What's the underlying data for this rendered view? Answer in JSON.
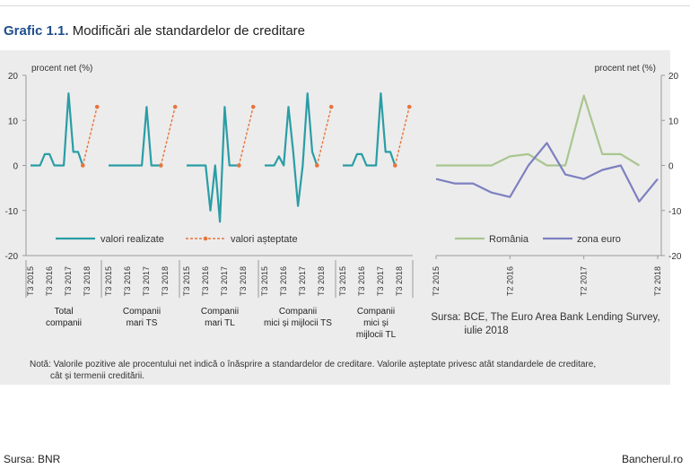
{
  "header": {
    "title_number": "Grafic 1.1.",
    "title_text": "Modificări ale standardelor de creditare"
  },
  "footer": {
    "source_left": "Sursa: BNR",
    "source_right": "Bancherul.ro"
  },
  "note": {
    "line1": "Notă: Valorile pozitive ale procentului net indică o înăsprire a standardelor de creditare. Valorile așteptate privesc atât standardele de creditare,",
    "line2": "cât și termenii creditării."
  },
  "colors": {
    "realized": "#2a9da5",
    "expected": "#e8743b",
    "romania": "#a9c690",
    "euro": "#7d80c0",
    "panel": "#ececec"
  },
  "chart_data": [
    {
      "type": "line",
      "ylabel": "procent net (%)",
      "ylim": [
        -20,
        20
      ],
      "yticks": [
        20,
        10,
        0,
        -10,
        -20
      ],
      "grid": false,
      "legend_position": "bottom",
      "tick_labels": [
        "T3 2015",
        "T3 2016",
        "T3 2017",
        "T3 2018"
      ],
      "groups": [
        {
          "label_lines": [
            "Total",
            "companii"
          ],
          "realized": [
            0,
            0,
            0,
            2.5,
            2.5,
            0,
            0,
            0,
            16,
            3,
            3,
            0
          ],
          "expected": {
            "from": [
              0,
              0
            ],
            "to": [
              3,
              13
            ]
          }
        },
        {
          "label_lines": [
            "Companii",
            "mari TS"
          ],
          "realized": [
            0,
            0,
            0,
            0,
            0,
            0,
            0,
            0,
            13,
            0,
            0,
            0
          ],
          "expected": {
            "from": [
              0,
              0
            ],
            "to": [
              3,
              13
            ]
          }
        },
        {
          "label_lines": [
            "Companii",
            "mari TL"
          ],
          "realized": [
            0,
            0,
            0,
            0,
            0,
            -10,
            0,
            -12.5,
            13,
            0,
            0,
            0
          ],
          "expected": {
            "from": [
              0,
              0
            ],
            "to": [
              3,
              13
            ]
          }
        },
        {
          "label_lines": [
            "Companii",
            "mici și mijlocii TS"
          ],
          "realized": [
            0,
            0,
            0,
            2,
            0,
            13,
            3,
            -9,
            0,
            16,
            3,
            0
          ],
          "expected": {
            "from": [
              0,
              0
            ],
            "to": [
              3,
              13
            ]
          }
        },
        {
          "label_lines": [
            "Companii",
            "mici și",
            "mijlocii TL"
          ],
          "realized": [
            0,
            0,
            0,
            2.5,
            2.5,
            0,
            0,
            0,
            16,
            3,
            3,
            0
          ],
          "expected": {
            "from": [
              0,
              0
            ],
            "to": [
              3,
              13
            ]
          }
        }
      ],
      "series": [
        {
          "name": "valori realizate"
        },
        {
          "name": "valori așteptate"
        }
      ]
    },
    {
      "type": "line",
      "ylabel": "procent net (%)",
      "ylim": [
        -20,
        20
      ],
      "yticks": [
        20,
        10,
        0,
        -10,
        -20
      ],
      "grid": false,
      "legend_position": "bottom",
      "categories": [
        "T2 2015",
        "T3 2015",
        "T4 2015",
        "T1 2016",
        "T2 2016",
        "T3 2016",
        "T4 2016",
        "T1 2017",
        "T2 2017",
        "T3 2017",
        "T4 2017",
        "T1 2018",
        "T2 2018"
      ],
      "x_tick_labels": [
        "T2 2015",
        "T2 2016",
        "T2 2017",
        "T2 2018"
      ],
      "series": [
        {
          "name": "România",
          "values": [
            0,
            0,
            0,
            0,
            2,
            2.5,
            0,
            0,
            15.5,
            2.5,
            2.5,
            0,
            null
          ]
        },
        {
          "name": "zona euro",
          "values": [
            -3,
            -4,
            -4,
            -6,
            -7,
            0,
            5,
            -2,
            -3,
            -1,
            0,
            -8,
            -3
          ]
        }
      ],
      "source": [
        "Sursa: BCE, The Euro Area Bank Lending Survey,",
        "iulie 2018"
      ]
    }
  ]
}
